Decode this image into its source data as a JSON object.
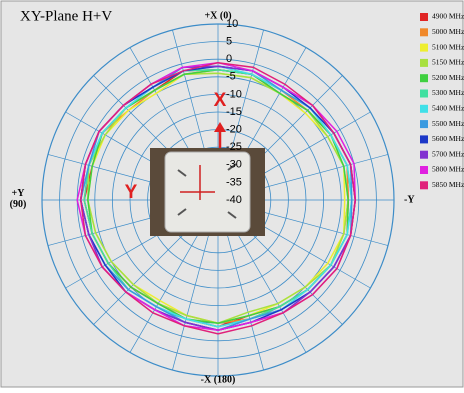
{
  "chart_data": {
    "type": "polar",
    "title": "XY-Plane  H+V",
    "direction_labels": {
      "top": "+X (0)",
      "bottom": "-X (180)",
      "left": "+Y\n(90)",
      "right": "-Y"
    },
    "annotations": {
      "x_axis": "X",
      "y_axis": "Y"
    },
    "x": [
      0,
      15,
      30,
      45,
      60,
      75,
      90,
      105,
      120,
      135,
      150,
      165,
      180,
      195,
      210,
      225,
      240,
      255,
      270,
      285,
      300,
      315,
      330,
      345
    ],
    "ylim": [
      -40,
      10
    ],
    "yticks": [
      10,
      5,
      0,
      -5,
      -10,
      -15,
      -20,
      -25,
      -30,
      -35,
      -40
    ],
    "grid": true,
    "series": [
      {
        "name": "4900 MHz",
        "color": "#e02424",
        "values": [
          -3,
          -2,
          -4,
          -3,
          -2,
          -3,
          -2,
          -3,
          -4,
          -5,
          -6,
          -5,
          -4,
          -6,
          -5,
          -4,
          -3,
          -2,
          -3,
          -2,
          -3,
          -4,
          -5,
          -3
        ]
      },
      {
        "name": "5000 MHz",
        "color": "#f0882a",
        "values": [
          -3,
          -3,
          -4,
          -4,
          -2,
          -2,
          -2,
          -3,
          -4,
          -5,
          -6,
          -6,
          -5,
          -5,
          -5,
          -4,
          -3,
          -3,
          -3,
          -2,
          -3,
          -4,
          -4,
          -3
        ]
      },
      {
        "name": "5100 MHz",
        "color": "#eeee30",
        "values": [
          -4,
          -3,
          -5,
          -4,
          -3,
          -3,
          -3,
          -4,
          -5,
          -6,
          -7,
          -6,
          -5,
          -6,
          -6,
          -5,
          -4,
          -3,
          -4,
          -3,
          -4,
          -5,
          -5,
          -4
        ]
      },
      {
        "name": "5150 MHz",
        "color": "#a8e040",
        "values": [
          -4,
          -3,
          -4,
          -3,
          -3,
          -2,
          -3,
          -4,
          -5,
          -6,
          -6,
          -6,
          -5,
          -7,
          -6,
          -5,
          -3,
          -3,
          -3,
          -3,
          -4,
          -4,
          -5,
          -4
        ]
      },
      {
        "name": "5200 MHz",
        "color": "#40d040",
        "values": [
          -3,
          -3,
          -4,
          -3,
          -2,
          -3,
          -3,
          -3,
          -4,
          -5,
          -6,
          -5,
          -5,
          -6,
          -5,
          -4,
          -3,
          -2,
          -3,
          -3,
          -3,
          -4,
          -5,
          -3
        ]
      },
      {
        "name": "5300 MHz",
        "color": "#40e0a0",
        "values": [
          -3,
          -2,
          -3,
          -3,
          -2,
          -2,
          -2,
          -3,
          -4,
          -4,
          -5,
          -5,
          -4,
          -5,
          -5,
          -4,
          -3,
          -2,
          -2,
          -2,
          -3,
          -3,
          -4,
          -3
        ]
      },
      {
        "name": "5400 MHz",
        "color": "#40e0e8",
        "values": [
          -2,
          -2,
          -3,
          -3,
          -2,
          -2,
          -1,
          -2,
          -3,
          -4,
          -5,
          -5,
          -4,
          -5,
          -4,
          -4,
          -3,
          -2,
          -2,
          -2,
          -3,
          -3,
          -4,
          -3
        ]
      },
      {
        "name": "5500 MHz",
        "color": "#3a9ae0",
        "values": [
          -2,
          -1,
          -3,
          -2,
          -1,
          -2,
          -1,
          -2,
          -3,
          -4,
          -5,
          -4,
          -3,
          -5,
          -4,
          -3,
          -2,
          -1,
          -2,
          -1,
          -2,
          -3,
          -4,
          -2
        ]
      },
      {
        "name": "5600 MHz",
        "color": "#1c38c8",
        "values": [
          -2,
          -2,
          -3,
          -2,
          -1,
          -1,
          -1,
          -2,
          -3,
          -3,
          -4,
          -4,
          -3,
          -4,
          -4,
          -3,
          -2,
          -1,
          -1,
          -1,
          -2,
          -3,
          -3,
          -2
        ]
      },
      {
        "name": "5700 MHz",
        "color": "#8030d0",
        "values": [
          -2,
          -1,
          -2,
          -2,
          -1,
          -1,
          -1,
          -2,
          -2,
          -3,
          -4,
          -4,
          -3,
          -4,
          -3,
          -3,
          -2,
          -1,
          -1,
          -1,
          -2,
          -2,
          -3,
          -2
        ]
      },
      {
        "name": "5800 MHz",
        "color": "#e020e0",
        "values": [
          -1,
          -1,
          -2,
          -2,
          -1,
          -1,
          0,
          -1,
          -2,
          -3,
          -4,
          -3,
          -3,
          -4,
          -3,
          -2,
          -1,
          -1,
          -1,
          0,
          -1,
          -2,
          -3,
          -2
        ]
      },
      {
        "name": "5850 MHz",
        "color": "#e0207a",
        "values": [
          -1,
          -2,
          -2,
          -2,
          -1,
          -1,
          -1,
          -1,
          -2,
          -3,
          -3,
          -3,
          -2,
          -3,
          -3,
          -2,
          -1,
          -1,
          -1,
          -1,
          -2,
          -2,
          -2,
          -1
        ]
      }
    ]
  }
}
